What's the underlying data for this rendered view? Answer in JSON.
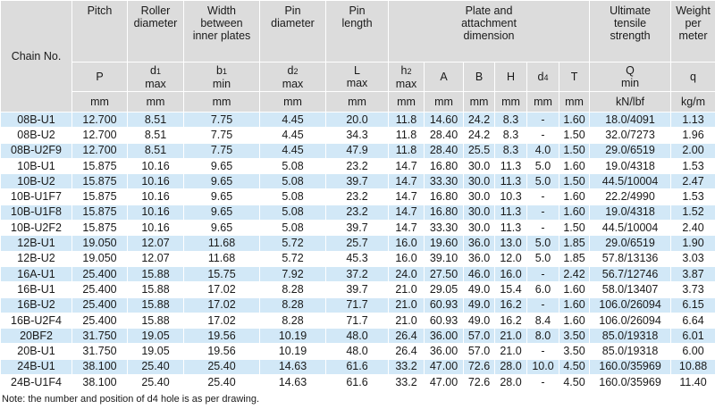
{
  "headers": {
    "chain_no": "Chain No.",
    "pitch": "Pitch",
    "roller_diameter": [
      "Roller",
      "diameter"
    ],
    "width_between": [
      "Width",
      "between",
      "inner plates"
    ],
    "pin_diameter": [
      "Pin",
      "diameter"
    ],
    "pin_length": [
      "Pin",
      "length"
    ],
    "plate_dim": [
      "Plate and",
      "attachment",
      "dimension"
    ],
    "uts": [
      "Ultimate",
      "tensile",
      "strength"
    ],
    "weight": [
      "Weight",
      "per",
      "meter"
    ]
  },
  "symbols": {
    "p": "P",
    "d1": "d",
    "d1_sub": "1",
    "d1_lim": "max",
    "b1": "b",
    "b1_sub": "1",
    "b1_lim": "min",
    "d2": "d",
    "d2_sub": "2",
    "d2_lim": "max",
    "l": "L",
    "l_lim": "max",
    "h2": "h",
    "h2_sub": "2",
    "h2_lim": "max",
    "a": "A",
    "b": "B",
    "h": "H",
    "d4": "d",
    "d4_sub": "4",
    "t": "T",
    "q_uts": "Q",
    "q_uts_lim": "min",
    "q_w": "q"
  },
  "units": [
    "mm",
    "mm",
    "mm",
    "mm",
    "mm",
    "mm",
    "mm",
    "mm",
    "mm",
    "mm",
    "mm",
    "kN/lbf",
    "kg/m"
  ],
  "rows": [
    [
      "08B-U1",
      "12.700",
      "8.51",
      "7.75",
      "4.45",
      "20.0",
      "11.8",
      "14.60",
      "24.2",
      "8.3",
      "-",
      "1.60",
      "18.0/4091",
      "1.13"
    ],
    [
      "08B-U2",
      "12.700",
      "8.51",
      "7.75",
      "4.45",
      "34.3",
      "11.8",
      "28.40",
      "24.2",
      "8.3",
      "-",
      "1.50",
      "32.0/7273",
      "1.96"
    ],
    [
      "08B-U2F9",
      "12.700",
      "8.51",
      "7.75",
      "4.45",
      "47.9",
      "11.8",
      "28.40",
      "25.5",
      "8.3",
      "4.0",
      "1.50",
      "29.0/6519",
      "2.00"
    ],
    [
      "10B-U1",
      "15.875",
      "10.16",
      "9.65",
      "5.08",
      "23.2",
      "14.7",
      "16.80",
      "30.0",
      "11.3",
      "5.0",
      "1.60",
      "19.0/4318",
      "1.53"
    ],
    [
      "10B-U2",
      "15.875",
      "10.16",
      "9.65",
      "5.08",
      "39.7",
      "14.7",
      "33.30",
      "30.0",
      "11.3",
      "5.0",
      "1.50",
      "44.5/10004",
      "2.47"
    ],
    [
      "10B-U1F7",
      "15.875",
      "10.16",
      "9.65",
      "5.08",
      "23.2",
      "14.7",
      "16.80",
      "30.0",
      "10.3",
      "-",
      "1.60",
      "22.2/4990",
      "1.53"
    ],
    [
      "10B-U1F8",
      "15.875",
      "10.16",
      "9.65",
      "5.08",
      "23.2",
      "14.7",
      "16.80",
      "30.0",
      "11.3",
      "-",
      "1.60",
      "19.0/4318",
      "1.52"
    ],
    [
      "10B-U2F2",
      "15.875",
      "10.16",
      "9.65",
      "5.08",
      "39.7",
      "14.7",
      "33.30",
      "30.0",
      "11.3",
      "-",
      "1.50",
      "44.5/10004",
      "2.40"
    ],
    [
      "12B-U1",
      "19.050",
      "12.07",
      "11.68",
      "5.72",
      "25.7",
      "16.0",
      "19.60",
      "36.0",
      "13.0",
      "5.0",
      "1.85",
      "29.0/6519",
      "1.90"
    ],
    [
      "12B-U2",
      "19.050",
      "12.07",
      "11.68",
      "5.72",
      "45.3",
      "16.0",
      "39.10",
      "36.0",
      "12.0",
      "5.0",
      "1.85",
      "57.8/13136",
      "3.03"
    ],
    [
      "16A-U1",
      "25.400",
      "15.88",
      "15.75",
      "7.92",
      "37.2",
      "24.0",
      "27.50",
      "46.0",
      "16.0",
      "-",
      "2.42",
      "56.7/12746",
      "3.87"
    ],
    [
      "16B-U1",
      "25.400",
      "15.88",
      "17.02",
      "8.28",
      "39.7",
      "21.0",
      "29.05",
      "49.0",
      "15.4",
      "6.0",
      "1.60",
      "58.0/13407",
      "3.73"
    ],
    [
      "16B-U2",
      "25.400",
      "15.88",
      "17.02",
      "8.28",
      "71.7",
      "21.0",
      "60.93",
      "49.0",
      "16.2",
      "-",
      "1.60",
      "106.0/26094",
      "6.15"
    ],
    [
      "16B-U2F4",
      "25.400",
      "15.88",
      "17.02",
      "8.28",
      "71.7",
      "21.0",
      "60.93",
      "49.0",
      "16.2",
      "8.4",
      "1.60",
      "106.0/26094",
      "6.64"
    ],
    [
      "20BF2",
      "31.750",
      "19.05",
      "19.56",
      "10.19",
      "48.0",
      "26.4",
      "36.00",
      "57.0",
      "21.0",
      "8.0",
      "3.50",
      "85.0/19318",
      "6.01"
    ],
    [
      "20B-U1",
      "31.750",
      "19.05",
      "19.56",
      "10.19",
      "48.0",
      "26.4",
      "36.00",
      "57.0",
      "21.0",
      "-",
      "3.50",
      "85.0/19318",
      "6.00"
    ],
    [
      "24B-U1",
      "38.100",
      "25.40",
      "25.40",
      "14.63",
      "61.6",
      "33.2",
      "47.00",
      "72.6",
      "28.0",
      "10.0",
      "4.50",
      "160.0/35969",
      "10.88"
    ],
    [
      "24B-U1F4",
      "38.100",
      "25.40",
      "25.40",
      "14.63",
      "61.6",
      "33.2",
      "47.00",
      "72.6",
      "28.0",
      "-",
      "4.50",
      "160.0/35969",
      "11.40"
    ]
  ],
  "note": "Note: the number and position of d4 hole is as per drawing."
}
